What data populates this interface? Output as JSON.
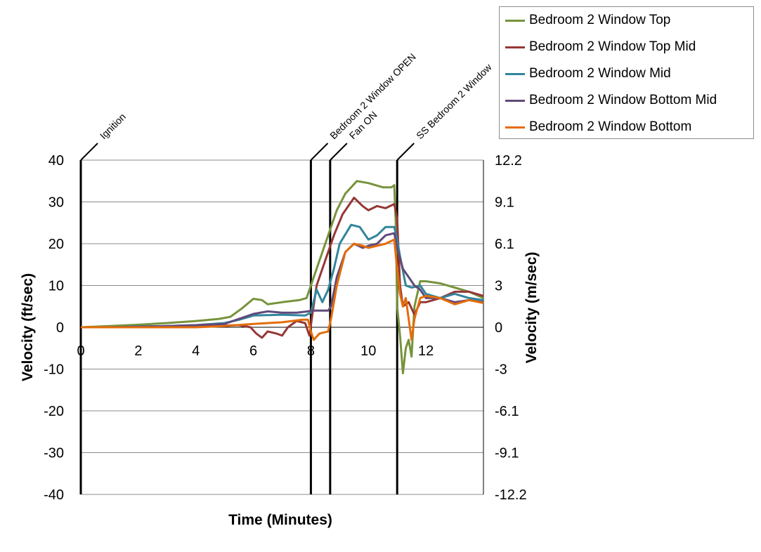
{
  "chart_data": {
    "type": "line",
    "xlabel": "Time (Minutes)",
    "ylabel": "Velocity (ft/sec)",
    "ylabel_right": "Velocity (m/sec)",
    "xlim": [
      0,
      14
    ],
    "ylim": [
      -40,
      40
    ],
    "x_ticks": [
      "0",
      "2",
      "4",
      "6",
      "8",
      "10",
      "12"
    ],
    "y_ticks": [
      "40",
      "30",
      "20",
      "10",
      "0",
      "-10",
      "-20",
      "-30",
      "-40"
    ],
    "y_ticks_right": [
      "12.2",
      "9.1",
      "6.1",
      "3",
      "0",
      "-3",
      "-6.1",
      "-9.1",
      "-12.2"
    ],
    "grid": true,
    "legend_position": "top-right",
    "events": [
      {
        "label": "Ignition",
        "x": 0
      },
      {
        "label": "Bedroom 2 Window OPEN",
        "x": 8.0
      },
      {
        "label": "Fan ON",
        "x": 8.67
      },
      {
        "label": "SS Bedroom 2 Window",
        "x": 11.0
      }
    ],
    "series": [
      {
        "name": "Bedroom 2 Window Top",
        "color": "#77933c",
        "points": [
          [
            0,
            0
          ],
          [
            1,
            0.3
          ],
          [
            2,
            0.6
          ],
          [
            3,
            1.0
          ],
          [
            4,
            1.5
          ],
          [
            4.8,
            2.0
          ],
          [
            5.2,
            2.5
          ],
          [
            5.6,
            4.5
          ],
          [
            6.0,
            6.8
          ],
          [
            6.3,
            6.5
          ],
          [
            6.5,
            5.5
          ],
          [
            7.0,
            6.0
          ],
          [
            7.6,
            6.5
          ],
          [
            7.85,
            7.0
          ],
          [
            8.0,
            10
          ],
          [
            8.3,
            16
          ],
          [
            8.6,
            22
          ],
          [
            8.9,
            28
          ],
          [
            9.2,
            32
          ],
          [
            9.6,
            35
          ],
          [
            10.0,
            34.5
          ],
          [
            10.5,
            33.5
          ],
          [
            10.8,
            33.5
          ],
          [
            10.9,
            34
          ],
          [
            10.95,
            25
          ],
          [
            11.0,
            5
          ],
          [
            11.1,
            -2
          ],
          [
            11.2,
            -11
          ],
          [
            11.3,
            -5
          ],
          [
            11.4,
            -3
          ],
          [
            11.5,
            -7
          ],
          [
            11.6,
            5
          ],
          [
            11.8,
            11
          ],
          [
            12.0,
            11
          ],
          [
            12.5,
            10.5
          ],
          [
            13.0,
            9.5
          ],
          [
            13.5,
            8.5
          ],
          [
            14.0,
            7.0
          ]
        ]
      },
      {
        "name": "Bedroom 2 Window Top Mid",
        "color": "#953735",
        "points": [
          [
            0,
            0
          ],
          [
            1,
            0
          ],
          [
            2,
            0.1
          ],
          [
            3,
            0.2
          ],
          [
            4,
            0.3
          ],
          [
            5,
            0.4
          ],
          [
            5.5,
            0.5
          ],
          [
            5.9,
            0
          ],
          [
            6.1,
            -1.5
          ],
          [
            6.3,
            -2.5
          ],
          [
            6.5,
            -1
          ],
          [
            6.8,
            -1.5
          ],
          [
            7.0,
            -2.0
          ],
          [
            7.2,
            0
          ],
          [
            7.5,
            1.5
          ],
          [
            7.8,
            1.0
          ],
          [
            7.95,
            -2
          ],
          [
            8.05,
            3
          ],
          [
            8.2,
            10
          ],
          [
            8.5,
            16
          ],
          [
            8.8,
            22
          ],
          [
            9.1,
            27
          ],
          [
            9.5,
            31
          ],
          [
            9.8,
            29
          ],
          [
            10.0,
            28
          ],
          [
            10.3,
            29
          ],
          [
            10.6,
            28.5
          ],
          [
            10.9,
            29.5
          ],
          [
            11.0,
            26
          ],
          [
            11.1,
            10
          ],
          [
            11.2,
            5
          ],
          [
            11.4,
            6
          ],
          [
            11.6,
            3
          ],
          [
            11.8,
            6
          ],
          [
            12.0,
            6
          ],
          [
            12.5,
            7
          ],
          [
            13.0,
            8.5
          ],
          [
            13.5,
            8.5
          ],
          [
            14.0,
            7.5
          ]
        ]
      },
      {
        "name": "Bedroom 2 Window Mid",
        "color": "#31859c",
        "points": [
          [
            0,
            0
          ],
          [
            1,
            0
          ],
          [
            2,
            0.2
          ],
          [
            3,
            0.3
          ],
          [
            4,
            0.5
          ],
          [
            5,
            1.0
          ],
          [
            5.5,
            1.8
          ],
          [
            6.0,
            2.8
          ],
          [
            7.0,
            3.0
          ],
          [
            7.8,
            2.8
          ],
          [
            8.0,
            3.5
          ],
          [
            8.2,
            9
          ],
          [
            8.4,
            6
          ],
          [
            8.6,
            9
          ],
          [
            8.8,
            14
          ],
          [
            9.0,
            20
          ],
          [
            9.4,
            24.5
          ],
          [
            9.7,
            24
          ],
          [
            10.0,
            21
          ],
          [
            10.3,
            22
          ],
          [
            10.6,
            24
          ],
          [
            10.9,
            24
          ],
          [
            11.0,
            21
          ],
          [
            11.1,
            17
          ],
          [
            11.3,
            10
          ],
          [
            11.5,
            9.5
          ],
          [
            11.8,
            10
          ],
          [
            12.0,
            8
          ],
          [
            12.5,
            7
          ],
          [
            13.0,
            8
          ],
          [
            13.5,
            7
          ],
          [
            14.0,
            6.5
          ]
        ]
      },
      {
        "name": "Bedroom 2 Window Bottom Mid",
        "color": "#604a7b",
        "points": [
          [
            0,
            0
          ],
          [
            1,
            0
          ],
          [
            2,
            0.1
          ],
          [
            3,
            0.3
          ],
          [
            4,
            0.5
          ],
          [
            5,
            0.8
          ],
          [
            5.5,
            2
          ],
          [
            6.0,
            3.2
          ],
          [
            6.5,
            3.8
          ],
          [
            7.0,
            3.5
          ],
          [
            7.5,
            3.5
          ],
          [
            7.9,
            3.8
          ],
          [
            8.0,
            4
          ],
          [
            8.6,
            4.0
          ],
          [
            8.7,
            5
          ],
          [
            8.9,
            12
          ],
          [
            9.2,
            18
          ],
          [
            9.5,
            20
          ],
          [
            9.8,
            19
          ],
          [
            10.0,
            19.5
          ],
          [
            10.3,
            20
          ],
          [
            10.6,
            22
          ],
          [
            10.9,
            22.5
          ],
          [
            11.0,
            19
          ],
          [
            11.2,
            14
          ],
          [
            11.4,
            12
          ],
          [
            11.6,
            10
          ],
          [
            11.8,
            9
          ],
          [
            12.0,
            7
          ],
          [
            12.5,
            7
          ],
          [
            13.0,
            6
          ],
          [
            13.5,
            6.5
          ],
          [
            14.0,
            6
          ]
        ]
      },
      {
        "name": "Bedroom 2 Window Bottom",
        "color": "#e46c0a",
        "points": [
          [
            0,
            0
          ],
          [
            1,
            0
          ],
          [
            2,
            0
          ],
          [
            3,
            0
          ],
          [
            4,
            0
          ],
          [
            5,
            0.3
          ],
          [
            6.0,
            0.8
          ],
          [
            7.0,
            1.2
          ],
          [
            7.7,
            1.8
          ],
          [
            7.9,
            1.8
          ],
          [
            8.0,
            -1
          ],
          [
            8.1,
            -3
          ],
          [
            8.3,
            -1.5
          ],
          [
            8.6,
            -1.0
          ],
          [
            8.7,
            2
          ],
          [
            8.9,
            10
          ],
          [
            9.2,
            18
          ],
          [
            9.5,
            20
          ],
          [
            9.8,
            19.5
          ],
          [
            10.0,
            19
          ],
          [
            10.3,
            19.5
          ],
          [
            10.6,
            20
          ],
          [
            10.9,
            21
          ],
          [
            11.0,
            14
          ],
          [
            11.1,
            8
          ],
          [
            11.2,
            5
          ],
          [
            11.3,
            7
          ],
          [
            11.5,
            -3
          ],
          [
            11.6,
            2
          ],
          [
            11.8,
            7
          ],
          [
            12.0,
            7.5
          ],
          [
            12.5,
            7
          ],
          [
            13.0,
            5.5
          ],
          [
            13.5,
            6.5
          ],
          [
            14.0,
            5.8
          ]
        ]
      }
    ]
  }
}
